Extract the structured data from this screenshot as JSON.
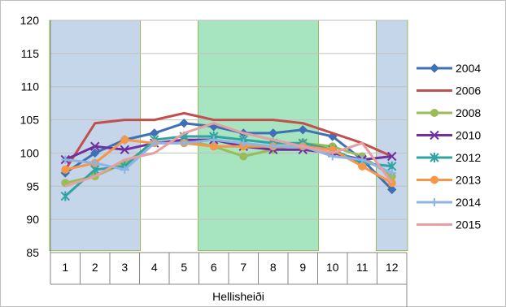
{
  "chart_data": {
    "type": "line",
    "title": "",
    "xlabel": "Hellisheiði",
    "ylabel": "",
    "categories": [
      "1",
      "2",
      "3",
      "4",
      "5",
      "6",
      "7",
      "8",
      "9",
      "10",
      "11",
      "12"
    ],
    "ylim": [
      85,
      120
    ],
    "y_ticks": [
      "85",
      "90",
      "95",
      "100",
      "105",
      "110",
      "115",
      "120"
    ],
    "grid": true,
    "legend_position": "right",
    "shaded_bands": [
      {
        "from": "1",
        "to": "3",
        "color": "#c5d5ea"
      },
      {
        "from": "6",
        "to": "9",
        "color": "#a6e5bf"
      },
      {
        "from": "12",
        "to": "12",
        "color": "#c5d5ea"
      }
    ],
    "series": [
      {
        "name": "2004",
        "color": "#3f6fb4",
        "marker": "diamond",
        "values": [
          97.0,
          100.0,
          102.0,
          103.0,
          104.5,
          104.0,
          103.0,
          103.0,
          103.5,
          102.5,
          99.0,
          94.5
        ]
      },
      {
        "name": "2006",
        "color": "#c0504d",
        "marker": "none",
        "values": [
          97.5,
          104.5,
          105.0,
          105.0,
          106.0,
          105.0,
          105.0,
          105.0,
          104.5,
          103.0,
          101.5,
          99.5
        ]
      },
      {
        "name": "2008",
        "color": "#9bbb59",
        "marker": "circle",
        "values": [
          95.5,
          96.5,
          98.5,
          101.5,
          102.0,
          101.0,
          99.5,
          100.5,
          101.5,
          101.0,
          99.5,
          96.5
        ]
      },
      {
        "name": "2010",
        "color": "#7030a0",
        "marker": "x",
        "values": [
          99.0,
          101.0,
          100.5,
          101.5,
          102.0,
          102.0,
          101.0,
          100.5,
          100.5,
          100.0,
          99.0,
          99.5
        ]
      },
      {
        "name": "2012",
        "color": "#31a3a3",
        "marker": "asterisk",
        "values": [
          93.5,
          97.5,
          98.0,
          102.0,
          102.5,
          102.5,
          102.0,
          101.5,
          101.5,
          100.5,
          98.5,
          98.0
        ]
      },
      {
        "name": "2013",
        "color": "#f79646",
        "marker": "circle",
        "values": [
          97.5,
          98.5,
          102.0,
          101.5,
          101.5,
          101.0,
          101.0,
          101.0,
          101.0,
          100.5,
          98.0,
          95.5
        ]
      },
      {
        "name": "2014",
        "color": "#8eb4e3",
        "marker": "plus",
        "values": [
          99.0,
          98.5,
          97.5,
          101.5,
          101.5,
          102.0,
          101.5,
          101.0,
          101.0,
          99.5,
          99.0,
          97.0
        ]
      },
      {
        "name": "2015",
        "color": "#e6a0a4",
        "marker": "none",
        "values": [
          95.0,
          96.5,
          99.0,
          100.0,
          103.0,
          104.5,
          103.0,
          102.0,
          101.0,
          100.0,
          101.5,
          95.5
        ]
      }
    ]
  }
}
